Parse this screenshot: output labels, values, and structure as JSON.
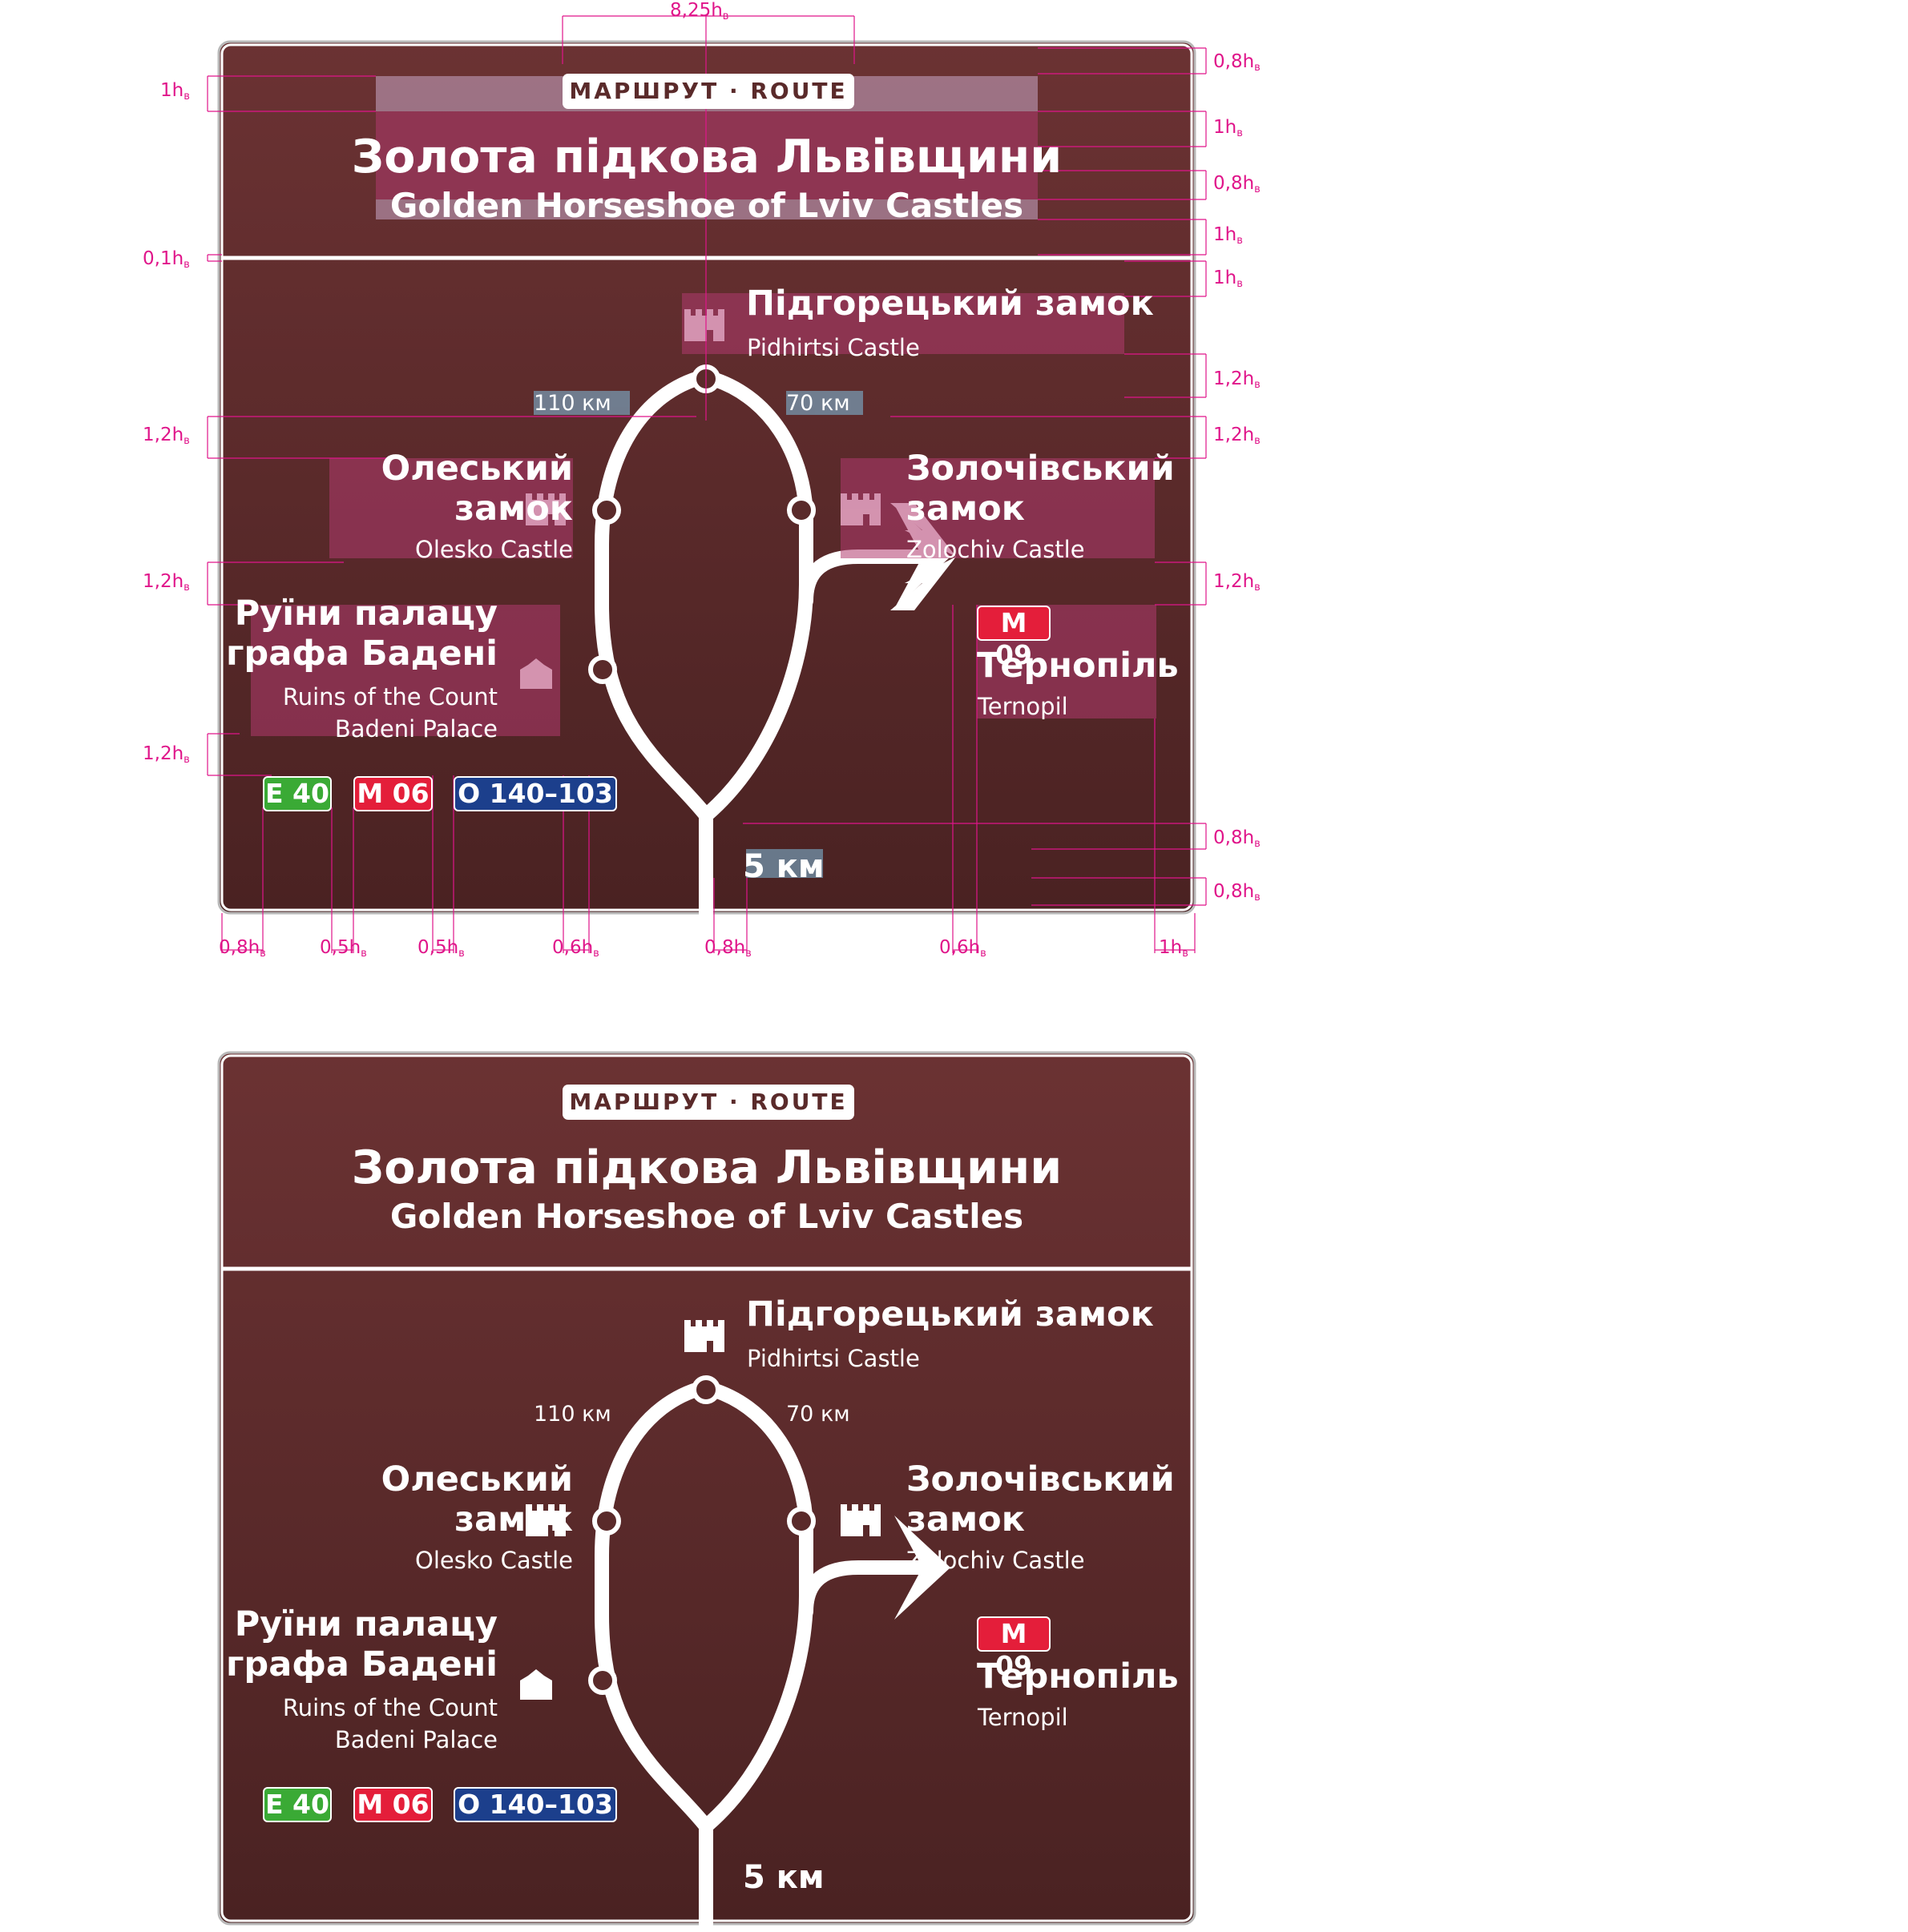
{
  "sign": {
    "route_label": "МАРШРУТ · ROUTE",
    "title_ua": "Золота підкова Львівщини",
    "title_en": "Golden Horseshoe of Lviv Castles",
    "destinations": {
      "pidhirtsi": {
        "ua": "Підгорецький замок",
        "en": "Pidhirtsi Castle"
      },
      "olesko": {
        "ua_line1": "Олеський",
        "ua_line2": "замок",
        "en": "Olesko Castle"
      },
      "zolochiv": {
        "ua_line1": "Золочівський",
        "ua_line2": "замок",
        "en": "Zolochiv Castle"
      },
      "badeni": {
        "ua_line1": "Руїни палацу",
        "ua_line2": "графа Бадені",
        "en_line1": "Ruins of the Count",
        "en_line2": "Badeni Palace"
      },
      "ternopil": {
        "road": "M 09",
        "ua": "Тернопіль",
        "en": "Ternopil"
      }
    },
    "distances": {
      "left": "110 км",
      "right": "70 км",
      "bottom": "5 км"
    },
    "road_badges": [
      {
        "label": "E 40",
        "color": "#3aaa35"
      },
      {
        "label": "M 06",
        "color": "#e41e3a"
      },
      {
        "label": "O 140–103",
        "color": "#1c3f8c"
      }
    ],
    "colors": {
      "background_top": "#6b3233",
      "background_bottom": "#4a2222",
      "road": "#ffffff",
      "m09": "#e41e3a"
    }
  },
  "dimensions": {
    "top": "8,25h",
    "left": [
      "1h",
      "0,1h",
      "1,2h",
      "1,2h",
      "1,2h"
    ],
    "right": [
      "0,8h",
      "1h",
      "0,8h",
      "1h",
      "1h",
      "1,2h",
      "1,2h",
      "1,2h",
      "0,8h",
      "0,8h"
    ],
    "bottom": [
      "0,8h",
      "0,5h",
      "0,5h",
      "0,6h",
      "0,8h",
      "0,6h",
      "1h"
    ],
    "subscript": "в"
  }
}
